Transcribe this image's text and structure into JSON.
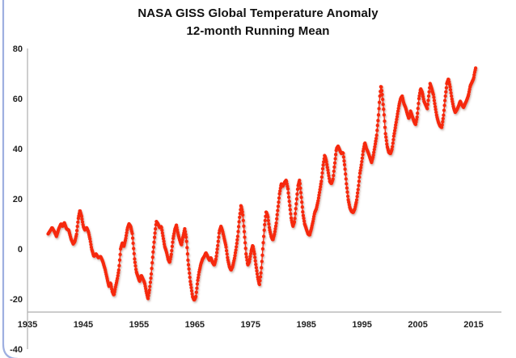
{
  "title": {
    "line1": "NASA GISS Global Temperature Anomaly",
    "line2": "12-month Running Mean"
  },
  "colors": {
    "series": "#f6290c",
    "series_shadow": "#9a6a5c",
    "axis_line": "#aeaeae",
    "tick_label": "#1f1f1f",
    "frame_border": "#94a6dd",
    "background": "#ffffff"
  },
  "chart_data": {
    "type": "line",
    "title": "NASA GISS Global Temperature Anomaly — 12-month Running Mean",
    "xlabel": "",
    "ylabel": "",
    "legend": "none",
    "grid": "off",
    "marker": "circle",
    "units": "0.01 °C anomaly",
    "xlim": [
      1935,
      2020
    ],
    "ylim": [
      -40,
      80
    ],
    "x_ticks": [
      1935,
      1945,
      1955,
      1965,
      1975,
      1985,
      1995,
      2005,
      2015
    ],
    "y_ticks": [
      80,
      60,
      40,
      20,
      0,
      -20,
      -40
    ],
    "x_axis_cross_y": -25.2,
    "points_per_year": 12,
    "keypoints": [
      [
        1938.7,
        6
      ],
      [
        1939.0,
        7
      ],
      [
        1939.4,
        8.5
      ],
      [
        1939.8,
        7
      ],
      [
        1940.2,
        5
      ],
      [
        1940.6,
        8
      ],
      [
        1941.0,
        10
      ],
      [
        1941.3,
        9
      ],
      [
        1941.6,
        10.5
      ],
      [
        1942.0,
        8
      ],
      [
        1942.4,
        7.5
      ],
      [
        1942.8,
        4
      ],
      [
        1943.2,
        2
      ],
      [
        1943.5,
        3
      ],
      [
        1943.8,
        6
      ],
      [
        1944.1,
        12
      ],
      [
        1944.4,
        15.5
      ],
      [
        1944.7,
        13
      ],
      [
        1945.0,
        9
      ],
      [
        1945.3,
        7.5
      ],
      [
        1945.6,
        8.5
      ],
      [
        1945.9,
        7
      ],
      [
        1946.2,
        4
      ],
      [
        1946.5,
        0
      ],
      [
        1946.9,
        -3
      ],
      [
        1947.3,
        -2
      ],
      [
        1947.7,
        -3.5
      ],
      [
        1948.1,
        -3
      ],
      [
        1948.5,
        -5
      ],
      [
        1948.9,
        -8
      ],
      [
        1949.3,
        -12
      ],
      [
        1949.6,
        -15
      ],
      [
        1949.9,
        -13.5
      ],
      [
        1950.2,
        -17
      ],
      [
        1950.5,
        -18.5
      ],
      [
        1950.8,
        -15
      ],
      [
        1951.1,
        -12
      ],
      [
        1951.4,
        -8
      ],
      [
        1951.7,
        0
      ],
      [
        1952.0,
        2.5
      ],
      [
        1952.3,
        1
      ],
      [
        1952.6,
        4
      ],
      [
        1952.9,
        8
      ],
      [
        1953.2,
        10
      ],
      [
        1953.5,
        9
      ],
      [
        1953.8,
        6
      ],
      [
        1954.2,
        -4
      ],
      [
        1954.5,
        -9
      ],
      [
        1954.8,
        -11
      ],
      [
        1955.1,
        -13
      ],
      [
        1955.4,
        -10.5
      ],
      [
        1955.7,
        -12
      ],
      [
        1956.0,
        -13.5
      ],
      [
        1956.3,
        -17
      ],
      [
        1956.6,
        -20
      ],
      [
        1956.9,
        -16
      ],
      [
        1957.2,
        -10
      ],
      [
        1957.5,
        -2
      ],
      [
        1957.8,
        5
      ],
      [
        1958.1,
        11
      ],
      [
        1958.4,
        10
      ],
      [
        1958.7,
        8.5
      ],
      [
        1959.0,
        9
      ],
      [
        1959.3,
        5
      ],
      [
        1959.6,
        1
      ],
      [
        1959.9,
        -1
      ],
      [
        1960.2,
        -4
      ],
      [
        1960.5,
        -5.5
      ],
      [
        1960.8,
        -2
      ],
      [
        1961.1,
        4
      ],
      [
        1961.4,
        7.5
      ],
      [
        1961.7,
        9.5
      ],
      [
        1962.0,
        6
      ],
      [
        1962.3,
        3.5
      ],
      [
        1962.6,
        1.5
      ],
      [
        1962.9,
        5
      ],
      [
        1963.2,
        8
      ],
      [
        1963.5,
        4
      ],
      [
        1963.8,
        -5
      ],
      [
        1964.2,
        -13
      ],
      [
        1964.6,
        -19
      ],
      [
        1964.9,
        -20.5
      ],
      [
        1965.2,
        -19
      ],
      [
        1965.5,
        -13
      ],
      [
        1965.8,
        -9
      ],
      [
        1966.1,
        -6
      ],
      [
        1966.4,
        -4
      ],
      [
        1966.7,
        -3
      ],
      [
        1967.0,
        -1.5
      ],
      [
        1967.3,
        -3
      ],
      [
        1967.6,
        -4.5
      ],
      [
        1967.9,
        -3.5
      ],
      [
        1968.2,
        -5.5
      ],
      [
        1968.5,
        -6.5
      ],
      [
        1968.8,
        -4
      ],
      [
        1969.1,
        1
      ],
      [
        1969.4,
        7
      ],
      [
        1969.7,
        9
      ],
      [
        1970.0,
        7
      ],
      [
        1970.3,
        4
      ],
      [
        1970.6,
        1
      ],
      [
        1970.9,
        -4
      ],
      [
        1971.2,
        -7
      ],
      [
        1971.5,
        -8.5
      ],
      [
        1971.8,
        -7
      ],
      [
        1972.1,
        -4
      ],
      [
        1972.4,
        0
      ],
      [
        1972.7,
        5
      ],
      [
        1973.0,
        12
      ],
      [
        1973.3,
        17.5
      ],
      [
        1973.6,
        14
      ],
      [
        1973.9,
        6
      ],
      [
        1974.2,
        -2
      ],
      [
        1974.5,
        -6.5
      ],
      [
        1974.8,
        -5
      ],
      [
        1975.1,
        -1
      ],
      [
        1975.4,
        1.5
      ],
      [
        1975.7,
        -2
      ],
      [
        1976.0,
        -7
      ],
      [
        1976.3,
        -11.5
      ],
      [
        1976.6,
        -14.5
      ],
      [
        1976.9,
        -9
      ],
      [
        1977.2,
        0
      ],
      [
        1977.5,
        9
      ],
      [
        1977.8,
        15
      ],
      [
        1978.1,
        13
      ],
      [
        1978.4,
        8
      ],
      [
        1978.7,
        5
      ],
      [
        1979.0,
        3.5
      ],
      [
        1979.3,
        6
      ],
      [
        1979.6,
        10
      ],
      [
        1979.9,
        16
      ],
      [
        1980.2,
        22
      ],
      [
        1980.5,
        26
      ],
      [
        1980.8,
        25
      ],
      [
        1981.1,
        26.5
      ],
      [
        1981.4,
        27.5
      ],
      [
        1981.7,
        24
      ],
      [
        1982.0,
        18
      ],
      [
        1982.3,
        12
      ],
      [
        1982.6,
        9
      ],
      [
        1982.9,
        11
      ],
      [
        1983.2,
        18
      ],
      [
        1983.5,
        25
      ],
      [
        1983.8,
        27.5
      ],
      [
        1984.1,
        21
      ],
      [
        1984.4,
        14
      ],
      [
        1984.7,
        10
      ],
      [
        1985.0,
        8
      ],
      [
        1985.3,
        6
      ],
      [
        1985.6,
        5.5
      ],
      [
        1985.9,
        8
      ],
      [
        1986.2,
        11
      ],
      [
        1986.5,
        14.5
      ],
      [
        1986.8,
        16
      ],
      [
        1987.1,
        19
      ],
      [
        1987.4,
        23
      ],
      [
        1987.7,
        27
      ],
      [
        1988.0,
        33
      ],
      [
        1988.3,
        37.5
      ],
      [
        1988.6,
        35
      ],
      [
        1988.9,
        31
      ],
      [
        1989.2,
        27
      ],
      [
        1989.5,
        26
      ],
      [
        1989.8,
        28
      ],
      [
        1990.1,
        34
      ],
      [
        1990.4,
        40
      ],
      [
        1990.7,
        41
      ],
      [
        1991.0,
        39.5
      ],
      [
        1991.3,
        38
      ],
      [
        1991.6,
        38.5
      ],
      [
        1991.9,
        33
      ],
      [
        1992.2,
        26
      ],
      [
        1992.5,
        20
      ],
      [
        1992.8,
        16.5
      ],
      [
        1993.1,
        15
      ],
      [
        1993.4,
        14.5
      ],
      [
        1993.7,
        16
      ],
      [
        1994.0,
        19
      ],
      [
        1994.3,
        24
      ],
      [
        1994.6,
        30
      ],
      [
        1994.9,
        34
      ],
      [
        1995.2,
        39
      ],
      [
        1995.5,
        42.5
      ],
      [
        1995.8,
        40
      ],
      [
        1996.1,
        38.5
      ],
      [
        1996.4,
        36.5
      ],
      [
        1996.7,
        34.5
      ],
      [
        1997.0,
        37
      ],
      [
        1997.3,
        41
      ],
      [
        1997.6,
        45
      ],
      [
        1997.9,
        52
      ],
      [
        1998.2,
        61
      ],
      [
        1998.4,
        65.5
      ],
      [
        1998.6,
        62
      ],
      [
        1998.9,
        55
      ],
      [
        1999.2,
        46
      ],
      [
        1999.5,
        41
      ],
      [
        1999.8,
        38.5
      ],
      [
        2000.1,
        38
      ],
      [
        2000.4,
        40
      ],
      [
        2000.7,
        45
      ],
      [
        2001.0,
        49
      ],
      [
        2001.3,
        53
      ],
      [
        2001.6,
        57
      ],
      [
        2001.9,
        60
      ],
      [
        2002.2,
        61
      ],
      [
        2002.5,
        58
      ],
      [
        2002.8,
        56.5
      ],
      [
        2003.1,
        54
      ],
      [
        2003.4,
        52
      ],
      [
        2003.7,
        55
      ],
      [
        2004.0,
        53
      ],
      [
        2004.3,
        51
      ],
      [
        2004.6,
        49.5
      ],
      [
        2004.9,
        53
      ],
      [
        2005.2,
        60
      ],
      [
        2005.5,
        64
      ],
      [
        2005.8,
        62.5
      ],
      [
        2006.1,
        59
      ],
      [
        2006.4,
        57.5
      ],
      [
        2006.7,
        56
      ],
      [
        2007.0,
        62
      ],
      [
        2007.2,
        66
      ],
      [
        2007.5,
        64
      ],
      [
        2007.8,
        61.5
      ],
      [
        2008.1,
        57
      ],
      [
        2008.4,
        53
      ],
      [
        2008.7,
        50.5
      ],
      [
        2009.0,
        49
      ],
      [
        2009.3,
        48.5
      ],
      [
        2009.6,
        53
      ],
      [
        2009.9,
        60
      ],
      [
        2010.2,
        66
      ],
      [
        2010.5,
        68
      ],
      [
        2010.8,
        64.5
      ],
      [
        2011.1,
        60
      ],
      [
        2011.4,
        56.5
      ],
      [
        2011.7,
        54.5
      ],
      [
        2012.0,
        55.5
      ],
      [
        2012.3,
        57
      ],
      [
        2012.6,
        59
      ],
      [
        2012.9,
        57.5
      ],
      [
        2013.2,
        56.5
      ],
      [
        2013.5,
        58
      ],
      [
        2013.8,
        59.5
      ],
      [
        2014.1,
        61.5
      ],
      [
        2014.4,
        65
      ],
      [
        2014.7,
        66.5
      ],
      [
        2015.0,
        68
      ],
      [
        2015.2,
        70.5
      ],
      [
        2015.4,
        72.5
      ]
    ]
  }
}
